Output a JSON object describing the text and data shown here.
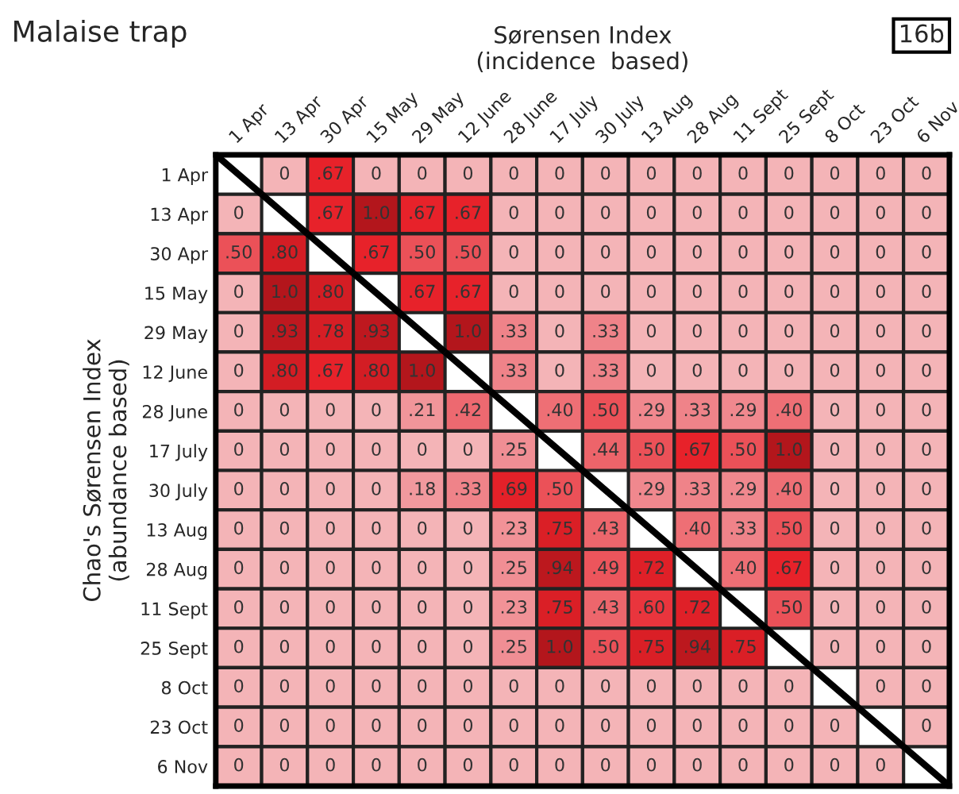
{
  "chart_data": {
    "type": "heatmap",
    "title": "Malaise trap",
    "xlabel": "Sørensen Index\n(incidence  based)",
    "ylabel": "Chao's Sørensen Index\n(abundance based)",
    "annotations": [
      "16b"
    ],
    "categories": [
      "1 Apr",
      "13 Apr",
      "30 Apr",
      "15 May",
      "29 May",
      "12 June",
      "28 June",
      "17 July",
      "30 July",
      "13 Aug",
      "28 Aug",
      "11 Sept",
      "25 Sept",
      "8 Oct",
      "23 Oct",
      "6 Nov"
    ],
    "y_categories": [
      "1 Apr",
      "13 Apr",
      "30 Apr",
      "15 May",
      "29 May",
      "12 June",
      "28 June",
      "17 July",
      "30 July",
      "13 Aug",
      "28 Aug",
      "11 Sept",
      "25 Sept",
      "8 Oct",
      "23 Oct",
      "6 Nov"
    ],
    "cells": [
      [
        null,
        0,
        0.67,
        0,
        0,
        0,
        0,
        0,
        0,
        0,
        0,
        0,
        0,
        0,
        0,
        0
      ],
      [
        0,
        null,
        0.67,
        1.0,
        0.67,
        0.67,
        0,
        0,
        0,
        0,
        0,
        0,
        0,
        0,
        0,
        0
      ],
      [
        0.5,
        0.8,
        null,
        0.67,
        0.5,
        0.5,
        0,
        0,
        0,
        0,
        0,
        0,
        0,
        0,
        0,
        0
      ],
      [
        0,
        1.0,
        0.8,
        null,
        0.67,
        0.67,
        0,
        0,
        0,
        0,
        0,
        0,
        0,
        0,
        0,
        0
      ],
      [
        0,
        0.93,
        0.78,
        0.93,
        null,
        1.0,
        0.33,
        0,
        0.33,
        0,
        0,
        0,
        0,
        0,
        0,
        0
      ],
      [
        0,
        0.8,
        0.67,
        0.8,
        1.0,
        null,
        0.33,
        0,
        0.33,
        0,
        0,
        0,
        0,
        0,
        0,
        0
      ],
      [
        0,
        0,
        0,
        0,
        0.21,
        0.42,
        null,
        0.4,
        0.5,
        0.29,
        0.33,
        0.29,
        0.4,
        0,
        0,
        0
      ],
      [
        0,
        0,
        0,
        0,
        0,
        0,
        0.25,
        null,
        0.44,
        0.5,
        0.67,
        0.5,
        1.0,
        0,
        0,
        0
      ],
      [
        0,
        0,
        0,
        0,
        0.18,
        0.33,
        0.69,
        0.5,
        null,
        0.29,
        0.33,
        0.29,
        0.4,
        0,
        0,
        0
      ],
      [
        0,
        0,
        0,
        0,
        0,
        0,
        0.23,
        0.75,
        0.43,
        null,
        0.4,
        0.33,
        0.5,
        0,
        0,
        0
      ],
      [
        0,
        0,
        0,
        0,
        0,
        0,
        0.25,
        0.94,
        0.49,
        0.72,
        null,
        0.4,
        0.67,
        0,
        0,
        0
      ],
      [
        0,
        0,
        0,
        0,
        0,
        0,
        0.23,
        0.75,
        0.43,
        0.6,
        0.72,
        null,
        0.5,
        0,
        0,
        0
      ],
      [
        0,
        0,
        0,
        0,
        0,
        0,
        0.25,
        1.0,
        0.5,
        0.75,
        0.94,
        0.75,
        null,
        0,
        0,
        0
      ],
      [
        0,
        0,
        0,
        0,
        0,
        0,
        0,
        0,
        0,
        0,
        0,
        0,
        0,
        null,
        0,
        0
      ],
      [
        0,
        0,
        0,
        0,
        0,
        0,
        0,
        0,
        0,
        0,
        0,
        0,
        0,
        0,
        null,
        0
      ],
      [
        0,
        0,
        0,
        0,
        0,
        0,
        0,
        0,
        0,
        0,
        0,
        0,
        0,
        0,
        0,
        null
      ]
    ],
    "cell_labels": [
      [
        null,
        "0",
        ".67",
        "0",
        "0",
        "0",
        "0",
        "0",
        "0",
        "0",
        "0",
        "0",
        "0",
        "0",
        "0",
        "0"
      ],
      [
        "0",
        null,
        ".67",
        "1.0",
        ".67",
        ".67",
        "0",
        "0",
        "0",
        "0",
        "0",
        "0",
        "0",
        "0",
        "0",
        "0"
      ],
      [
        ".50",
        ".80",
        null,
        ".67",
        ".50",
        ".50",
        "0",
        "0",
        "0",
        "0",
        "0",
        "0",
        "0",
        "0",
        "0",
        "0"
      ],
      [
        "0",
        "1.0",
        ".80",
        null,
        ".67",
        ".67",
        "0",
        "0",
        "0",
        "0",
        "0",
        "0",
        "0",
        "0",
        "0",
        "0"
      ],
      [
        "0",
        ".93",
        ".78",
        ".93",
        null,
        "1.0",
        ".33",
        "0",
        ".33",
        "0",
        "0",
        "0",
        "0",
        "0",
        "0",
        "0"
      ],
      [
        "0",
        ".80",
        ".67",
        ".80",
        "1.0",
        null,
        ".33",
        "0",
        ".33",
        "0",
        "0",
        "0",
        "0",
        "0",
        "0",
        "0"
      ],
      [
        "0",
        "0",
        "0",
        "0",
        ".21",
        ".42",
        null,
        ".40",
        ".50",
        ".29",
        ".33",
        ".29",
        ".40",
        "0",
        "0",
        "0"
      ],
      [
        "0",
        "0",
        "0",
        "0",
        "0",
        "0",
        ".25",
        null,
        ".44",
        ".50",
        ".67",
        ".50",
        "1.0",
        "0",
        "0",
        "0"
      ],
      [
        "0",
        "0",
        "0",
        "0",
        ".18",
        ".33",
        ".69",
        ".50",
        null,
        ".29",
        ".33",
        ".29",
        ".40",
        "0",
        "0",
        "0"
      ],
      [
        "0",
        "0",
        "0",
        "0",
        "0",
        "0",
        ".23",
        ".75",
        ".43",
        null,
        ".40",
        ".33",
        ".50",
        "0",
        "0",
        "0"
      ],
      [
        "0",
        "0",
        "0",
        "0",
        "0",
        "0",
        ".25",
        ".94",
        ".49",
        ".72",
        null,
        ".40",
        ".67",
        "0",
        "0",
        "0"
      ],
      [
        "0",
        "0",
        "0",
        "0",
        "0",
        "0",
        ".23",
        ".75",
        ".43",
        ".60",
        ".72",
        null,
        ".50",
        "0",
        "0",
        "0"
      ],
      [
        "0",
        "0",
        "0",
        "0",
        "0",
        "0",
        ".25",
        "1.0",
        ".50",
        ".75",
        ".94",
        ".75",
        null,
        "0",
        "0",
        "0"
      ],
      [
        "0",
        "0",
        "0",
        "0",
        "0",
        "0",
        "0",
        "0",
        "0",
        "0",
        "0",
        "0",
        "0",
        null,
        "0",
        "0"
      ],
      [
        "0",
        "0",
        "0",
        "0",
        "0",
        "0",
        "0",
        "0",
        "0",
        "0",
        "0",
        "0",
        "0",
        "0",
        null,
        "0"
      ],
      [
        "0",
        "0",
        "0",
        "0",
        "0",
        "0",
        "0",
        "0",
        "0",
        "0",
        "0",
        "0",
        "0",
        "0",
        "0",
        null
      ]
    ]
  }
}
